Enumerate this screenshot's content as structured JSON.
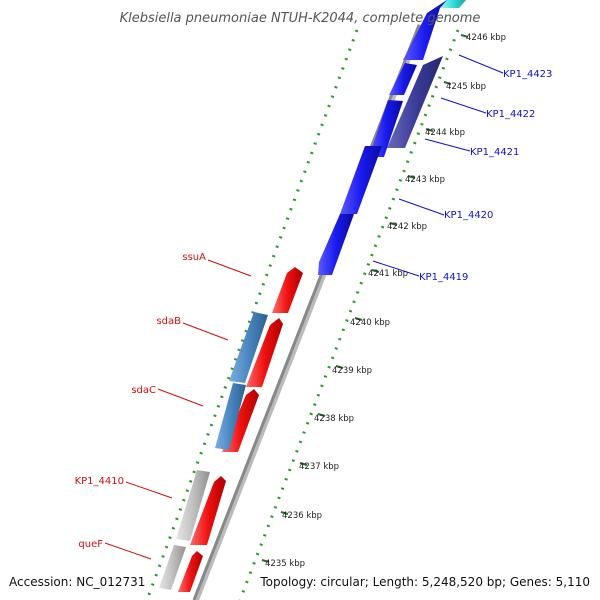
{
  "title": "Klebsiella pneumoniae NTUH-K2044, complete genome",
  "footer": {
    "accession": "Accession: NC_012731",
    "info": "Topology: circular; Length: 5,248,520 bp; Genes: 5,110"
  },
  "kbp_ticks": [
    "4235 kbp",
    "4236 kbp",
    "4237 kbp",
    "4238 kbp",
    "4239 kbp",
    "4240 kbp",
    "4241 kbp",
    "4242 kbp",
    "4243 kbp",
    "4244 kbp",
    "4245 kbp",
    "4246 kbp"
  ],
  "forward_gene_labels": [
    "KP1_4419",
    "KP1_4420",
    "KP1_4421",
    "KP1_4422",
    "KP1_4423"
  ],
  "reverse_gene_labels": [
    "ssuA",
    "sdaB",
    "sdaC",
    "KP1_4410",
    "queF"
  ],
  "colors": {
    "forward_cds": "#1a1aee",
    "forward_cds_dark": "#3c3c9a",
    "cyan_cds": "#33dddd",
    "reverse_cds": "#ee1111",
    "steel_cds": "#4a86c0",
    "grey_cds": "#c0c0c0",
    "backbone": "#888888",
    "ruler_dots": "#2a9a2a"
  }
}
